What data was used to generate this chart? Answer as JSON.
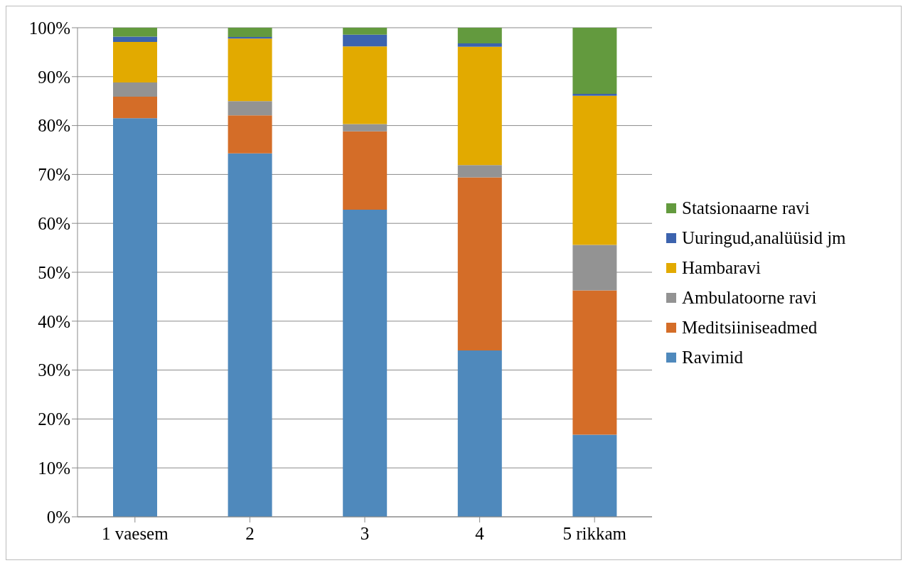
{
  "chart_data": {
    "type": "bar",
    "stacked": true,
    "categories": [
      "1 vaesem",
      "2",
      "3",
      "4",
      "5 rikkam"
    ],
    "series": [
      {
        "name": "Ravimid",
        "color": "#4f89bc",
        "values": [
          81.5,
          74.3,
          62.8,
          34.0,
          16.8
        ]
      },
      {
        "name": "Meditsiiniseadmed",
        "color": "#d46d28",
        "values": [
          4.4,
          7.8,
          16.0,
          35.4,
          29.5
        ]
      },
      {
        "name": "Ambulatoorne ravi",
        "color": "#939393",
        "values": [
          2.9,
          2.9,
          1.5,
          2.5,
          9.3
        ]
      },
      {
        "name": "Hambaravi",
        "color": "#e2aa00",
        "values": [
          8.3,
          12.8,
          15.9,
          24.2,
          30.5
        ]
      },
      {
        "name": "Uuringud,analüüsid jm",
        "color": "#3c63ae",
        "values": [
          1.1,
          0.3,
          2.4,
          0.7,
          0.4
        ]
      },
      {
        "name": "Statsionaarne ravi",
        "color": "#639a3e",
        "values": [
          1.8,
          1.9,
          1.4,
          3.2,
          13.5
        ]
      }
    ],
    "ylim": [
      0,
      100
    ],
    "yticks": [
      {
        "value": 0,
        "label": "0%"
      },
      {
        "value": 10,
        "label": "10%"
      },
      {
        "value": 20,
        "label": "20%"
      },
      {
        "value": 30,
        "label": "30%"
      },
      {
        "value": 40,
        "label": "40%"
      },
      {
        "value": 50,
        "label": "50%"
      },
      {
        "value": 60,
        "label": "60%"
      },
      {
        "value": 70,
        "label": "70%"
      },
      {
        "value": 80,
        "label": "80%"
      },
      {
        "value": 90,
        "label": "90%"
      },
      {
        "value": 100,
        "label": "100%"
      }
    ],
    "grid": "y",
    "legend": "right"
  }
}
